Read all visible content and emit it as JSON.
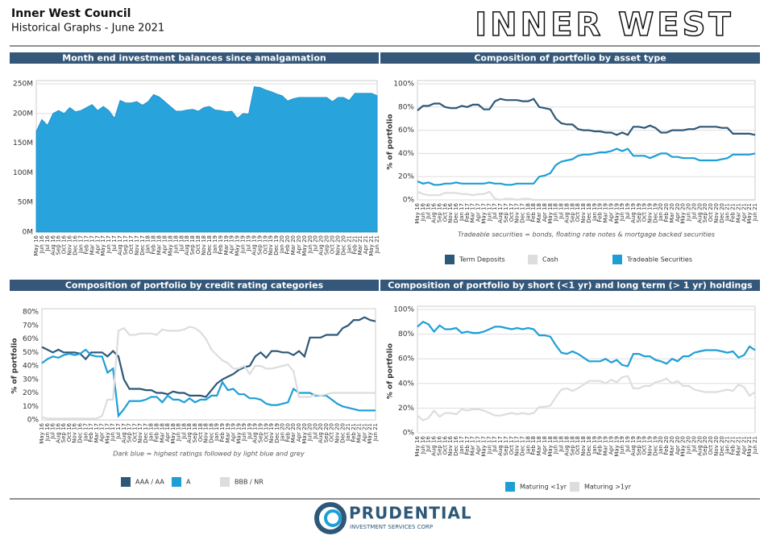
{
  "header": {
    "title": "Inner West Council",
    "subtitle": "Historical Graphs - June 2021",
    "logo": "INNER WEST"
  },
  "footer": {
    "logo": "PRUDENTIAL",
    "tagline": "INVESTMENT SERVICES CORP"
  },
  "chart_data": [
    {
      "type": "area",
      "title": "Month end investment balances since amalgamation",
      "color": "#29a3db",
      "grid": true,
      "categories": [
        "May 16",
        "Jun 16",
        "Jul 16",
        "Aug 16",
        "Sep 16",
        "Oct 16",
        "Nov 16",
        "Dec 16",
        "Jan 17",
        "Feb 17",
        "Mar 17",
        "Apr 17",
        "May 17",
        "Jun 17",
        "Jul 17",
        "Aug 17",
        "Sep 17",
        "Oct 17",
        "Nov 17",
        "Dec 17",
        "Jan 18",
        "Feb 18",
        "Mar 18",
        "Apr 18",
        "May 18",
        "Jun 18",
        "Jul 18",
        "Aug 18",
        "Sep 18",
        "Oct 18",
        "Nov 18",
        "Dec 18",
        "Jan 19",
        "Feb 19",
        "Mar 19",
        "Apr 19",
        "May 19",
        "Jun 19",
        "Jul 19",
        "Aug 19",
        "Sep 19",
        "Oct 19",
        "Nov 19",
        "Dec 19",
        "Jan 20",
        "Feb 20",
        "Mar 20",
        "Apr 20",
        "May 20",
        "Jun 20",
        "Jul 20",
        "Aug 20",
        "Sep 20",
        "Oct 20",
        "Nov 20",
        "Dec 20",
        "Jan 21",
        "Feb 21",
        "Mar 21",
        "Apr 21",
        "May 21",
        "Jun 21"
      ],
      "values": [
        170000000,
        190000000,
        180000000,
        200000000,
        205000000,
        200000000,
        210000000,
        203000000,
        205000000,
        210000000,
        215000000,
        205000000,
        212000000,
        205000000,
        192000000,
        222000000,
        218000000,
        218000000,
        220000000,
        214000000,
        220000000,
        232000000,
        228000000,
        220000000,
        212000000,
        204000000,
        204000000,
        206000000,
        207000000,
        204000000,
        210000000,
        212000000,
        206000000,
        205000000,
        203000000,
        204000000,
        192000000,
        200000000,
        199000000,
        245000000,
        244000000,
        240000000,
        237000000,
        233000000,
        230000000,
        221000000,
        225000000,
        227000000,
        227000000,
        227000000,
        227000000,
        227000000,
        227000000,
        220000000,
        227000000,
        227000000,
        222000000,
        234000000,
        234000000,
        234000000,
        234000000,
        230000000
      ],
      "ylim": [
        0,
        250000000
      ],
      "yticks": [
        {
          "value": 0,
          "label": "0M"
        },
        {
          "value": 50000000,
          "label": "50M"
        },
        {
          "value": 100000000,
          "label": "100M"
        },
        {
          "value": 150000000,
          "label": "150M"
        },
        {
          "value": 200000000,
          "label": "200M"
        },
        {
          "value": 250000000,
          "label": "250M"
        }
      ]
    },
    {
      "type": "line",
      "title": "Composition of portfolio by asset type",
      "y_label": "% of portfolio",
      "note": "Tradeable securities = bonds, floating rate notes & mortgage backed securities",
      "grid": true,
      "categories": [
        "May 16",
        "Jun 16",
        "Jul 16",
        "Aug 16",
        "Sep 16",
        "Oct 16",
        "Nov 16",
        "Dec 16",
        "Jan 17",
        "Feb 17",
        "Mar 17",
        "Apr 17",
        "May 17",
        "Jun 17",
        "Jul 17",
        "Aug 17",
        "Sep 17",
        "Oct 17",
        "Nov 17",
        "Dec 17",
        "Jan 18",
        "Feb 18",
        "Mar 18",
        "Apr 18",
        "May 18",
        "Jun 18",
        "Jul 18",
        "Aug 18",
        "Sep 18",
        "Oct 18",
        "Nov 18",
        "Dec 18",
        "Jan 19",
        "Feb 19",
        "Mar 19",
        "Apr 19",
        "May 19",
        "Jun 19",
        "Jul 19",
        "Aug 19",
        "Sep 19",
        "Oct 19",
        "Nov 19",
        "Dec 19",
        "Jan 20",
        "Feb 20",
        "Mar 20",
        "Apr 20",
        "May 20",
        "Jun 20",
        "Jul 20",
        "Aug 20",
        "Sep 20",
        "Oct 20",
        "Nov 20",
        "Dec 20",
        "Jan 21",
        "Feb 21",
        "Mar 21",
        "Apr 21",
        "May 21",
        "Jun 21"
      ],
      "series": [
        {
          "name": "Term Deposits",
          "color": "#2e5878",
          "values": [
            77,
            81,
            81,
            83,
            83,
            80,
            79,
            79,
            81,
            80,
            82,
            82,
            78,
            78,
            85,
            87,
            86,
            86,
            86,
            85,
            85,
            87,
            80,
            79,
            78,
            70,
            66,
            65,
            65,
            61,
            60,
            60,
            59,
            59,
            58,
            58,
            56,
            58,
            56,
            63,
            63,
            62,
            64,
            62,
            58,
            58,
            60,
            60,
            60,
            61,
            61,
            63,
            63,
            63,
            63,
            62,
            62,
            57,
            57,
            57,
            57,
            56
          ]
        },
        {
          "name": "Cash",
          "color": "#dddddd",
          "values": [
            7,
            5,
            4,
            4,
            4,
            6,
            6,
            6,
            5,
            5,
            4,
            5,
            5,
            7,
            1,
            0,
            1,
            1,
            0,
            1,
            1,
            0,
            0,
            0,
            0,
            0,
            0,
            0,
            0,
            0,
            0,
            0,
            0,
            0,
            0,
            0,
            0,
            0,
            0,
            0,
            0,
            0,
            0,
            0,
            0,
            0,
            0,
            0,
            0,
            0,
            0,
            0,
            0,
            0,
            0,
            0,
            0,
            0,
            0,
            0,
            0,
            0
          ]
        },
        {
          "name": "Tradeable Securities",
          "color": "#1d9fd6",
          "values": [
            16,
            14,
            15,
            13,
            13,
            14,
            14,
            15,
            14,
            14,
            14,
            14,
            14,
            15,
            14,
            14,
            13,
            13,
            14,
            14,
            14,
            14,
            20,
            21,
            23,
            30,
            33,
            34,
            35,
            38,
            39,
            39,
            40,
            41,
            41,
            42,
            44,
            42,
            44,
            38,
            38,
            38,
            36,
            38,
            40,
            40,
            37,
            37,
            36,
            36,
            36,
            34,
            34,
            34,
            34,
            35,
            36,
            39,
            39,
            39,
            39,
            40
          ]
        }
      ],
      "ylim": [
        0,
        100
      ],
      "yticks": [
        {
          "value": 0,
          "label": "0%"
        },
        {
          "value": 20,
          "label": "20%"
        },
        {
          "value": 40,
          "label": "40%"
        },
        {
          "value": 60,
          "label": "60%"
        },
        {
          "value": 80,
          "label": "80%"
        },
        {
          "value": 100,
          "label": "100%"
        }
      ]
    },
    {
      "type": "line",
      "title": "Composition of portfolio by credit rating categories",
      "y_label": "% of portfolio",
      "note": "Dark blue = highest ratings followed by light blue and grey",
      "grid": false,
      "categories": [
        "May 16",
        "Jun 16",
        "Jul 16",
        "Aug 16",
        "Sep 16",
        "Oct 16",
        "Nov 16",
        "Dec 16",
        "Jan 17",
        "Feb 17",
        "Mar 17",
        "Apr 17",
        "May 17",
        "Jun 17",
        "Jul 17",
        "Aug 17",
        "Sep 17",
        "Oct 17",
        "Nov 17",
        "Dec 17",
        "Jan 18",
        "Feb 18",
        "Mar 18",
        "Apr 18",
        "May 18",
        "Jun 18",
        "Jul 18",
        "Aug 18",
        "Sep 18",
        "Oct 18",
        "Nov 18",
        "Dec 18",
        "Jan 19",
        "Feb 19",
        "Mar 19",
        "Apr 19",
        "May 19",
        "Jun 19",
        "Jul 19",
        "Aug 19",
        "Sep 19",
        "Oct 19",
        "Nov 19",
        "Dec 19",
        "Jan 20",
        "Feb 20",
        "Mar 20",
        "Apr 20",
        "May 20",
        "Jun 20",
        "Jul 20",
        "Aug 20",
        "Sep 20",
        "Oct 20",
        "Nov 20",
        "Dec 20",
        "Jan 21",
        "Feb 21",
        "Mar 21",
        "Apr 21",
        "May 21",
        "Jun 21"
      ],
      "series": [
        {
          "name": "AAA / AA",
          "color": "#2e5878",
          "values": [
            54,
            52,
            50,
            52,
            50,
            50,
            50,
            49,
            45,
            50,
            50,
            50,
            47,
            51,
            47,
            30,
            23,
            23,
            23,
            22,
            22,
            20,
            20,
            19,
            21,
            20,
            20,
            18,
            18,
            18,
            17,
            22,
            27,
            30,
            32,
            34,
            37,
            39,
            40,
            47,
            50,
            46,
            51,
            51,
            50,
            50,
            48,
            51,
            47,
            61,
            61,
            61,
            63,
            63,
            63,
            68,
            70,
            74,
            74,
            76,
            74,
            73
          ]
        },
        {
          "name": "A",
          "color": "#1d9fd6",
          "values": [
            42,
            45,
            47,
            46,
            48,
            49,
            48,
            49,
            52,
            48,
            47,
            47,
            35,
            38,
            3,
            8,
            14,
            14,
            14,
            15,
            17,
            17,
            13,
            18,
            15,
            15,
            13,
            16,
            13,
            15,
            15,
            18,
            18,
            28,
            22,
            23,
            19,
            19,
            16,
            16,
            15,
            12,
            11,
            11,
            12,
            13,
            23,
            20,
            20,
            20,
            18,
            18,
            18,
            15,
            12,
            10,
            9,
            8,
            7,
            7,
            7,
            7
          ]
        },
        {
          "name": "BBB / NR",
          "color": "#dddddd",
          "values": [
            2,
            1,
            1,
            1,
            1,
            1,
            1,
            1,
            1,
            1,
            1,
            3,
            15,
            15,
            66,
            68,
            63,
            63,
            64,
            64,
            64,
            63,
            67,
            66,
            66,
            66,
            67,
            69,
            68,
            65,
            60,
            52,
            48,
            44,
            42,
            38,
            38,
            40,
            34,
            40,
            40,
            38,
            38,
            39,
            40,
            41,
            36,
            17,
            17,
            17,
            19,
            18,
            19,
            20,
            20,
            20,
            20,
            20,
            20,
            20,
            20,
            20
          ]
        }
      ],
      "ylim": [
        0,
        80
      ],
      "yticks": [
        {
          "value": 0,
          "label": "0%"
        },
        {
          "value": 10,
          "label": "10%"
        },
        {
          "value": 20,
          "label": "20%"
        },
        {
          "value": 30,
          "label": "30%"
        },
        {
          "value": 40,
          "label": "40%"
        },
        {
          "value": 50,
          "label": "50%"
        },
        {
          "value": 60,
          "label": "60%"
        },
        {
          "value": 70,
          "label": "70%"
        },
        {
          "value": 80,
          "label": "80%"
        }
      ]
    },
    {
      "type": "line",
      "title": "Composition of portfolio by short (<1 yr) and long term (> 1 yr) holdings",
      "y_label": "% of portfolio",
      "grid": true,
      "categories": [
        "May 16",
        "Jun 16",
        "Jul 16",
        "Aug 16",
        "Sep 16",
        "Oct 16",
        "Nov 16",
        "Dec 16",
        "Jan 17",
        "Feb 17",
        "Mar 17",
        "Apr 17",
        "May 17",
        "Jun 17",
        "Jul 17",
        "Aug 17",
        "Sep 17",
        "Oct 17",
        "Nov 17",
        "Dec 17",
        "Jan 18",
        "Feb 18",
        "Mar 18",
        "Apr 18",
        "May 18",
        "Jun 18",
        "Jul 18",
        "Aug 18",
        "Sep 18",
        "Oct 18",
        "Nov 18",
        "Dec 18",
        "Jan 19",
        "Feb 19",
        "Mar 19",
        "Apr 19",
        "May 19",
        "Jun 19",
        "Jul 19",
        "Aug 19",
        "Sep 19",
        "Oct 19",
        "Nov 19",
        "Dec 19",
        "Jan 20",
        "Feb 20",
        "Mar 20",
        "Apr 20",
        "May 20",
        "Jun 20",
        "Jul 20",
        "Aug 20",
        "Sep 20",
        "Oct 20",
        "Nov 20",
        "Dec 20",
        "Jan 21",
        "Feb 21",
        "Mar 21",
        "Apr 21",
        "May 21",
        "Jun 21"
      ],
      "series": [
        {
          "name": "Maturing <1yr",
          "color": "#1d9fd6",
          "values": [
            86,
            90,
            88,
            82,
            87,
            84,
            84,
            85,
            81,
            82,
            81,
            81,
            82,
            84,
            86,
            86,
            85,
            84,
            85,
            84,
            85,
            84,
            79,
            79,
            78,
            71,
            65,
            64,
            66,
            64,
            61,
            58,
            58,
            58,
            60,
            57,
            59,
            55,
            54,
            64,
            64,
            62,
            62,
            59,
            58,
            56,
            60,
            58,
            62,
            62,
            65,
            66,
            67,
            67,
            67,
            66,
            65,
            66,
            61,
            63,
            70,
            67
          ]
        },
        {
          "name": "Maturing >1yr",
          "color": "#dddddd",
          "values": [
            14,
            10,
            12,
            18,
            13,
            16,
            16,
            15,
            19,
            18,
            19,
            19,
            18,
            16,
            14,
            14,
            15,
            16,
            15,
            16,
            15,
            16,
            21,
            21,
            22,
            29,
            35,
            36,
            34,
            36,
            39,
            42,
            42,
            42,
            40,
            43,
            41,
            45,
            46,
            36,
            36,
            38,
            38,
            41,
            42,
            44,
            40,
            42,
            38,
            38,
            35,
            34,
            33,
            33,
            33,
            34,
            35,
            34,
            39,
            37,
            30,
            33
          ]
        }
      ],
      "ylim": [
        0,
        100
      ],
      "yticks": [
        {
          "value": 0,
          "label": "0%"
        },
        {
          "value": 20,
          "label": "20%"
        },
        {
          "value": 40,
          "label": "40%"
        },
        {
          "value": 60,
          "label": "60%"
        },
        {
          "value": 80,
          "label": "80%"
        },
        {
          "value": 100,
          "label": "100%"
        }
      ]
    }
  ]
}
